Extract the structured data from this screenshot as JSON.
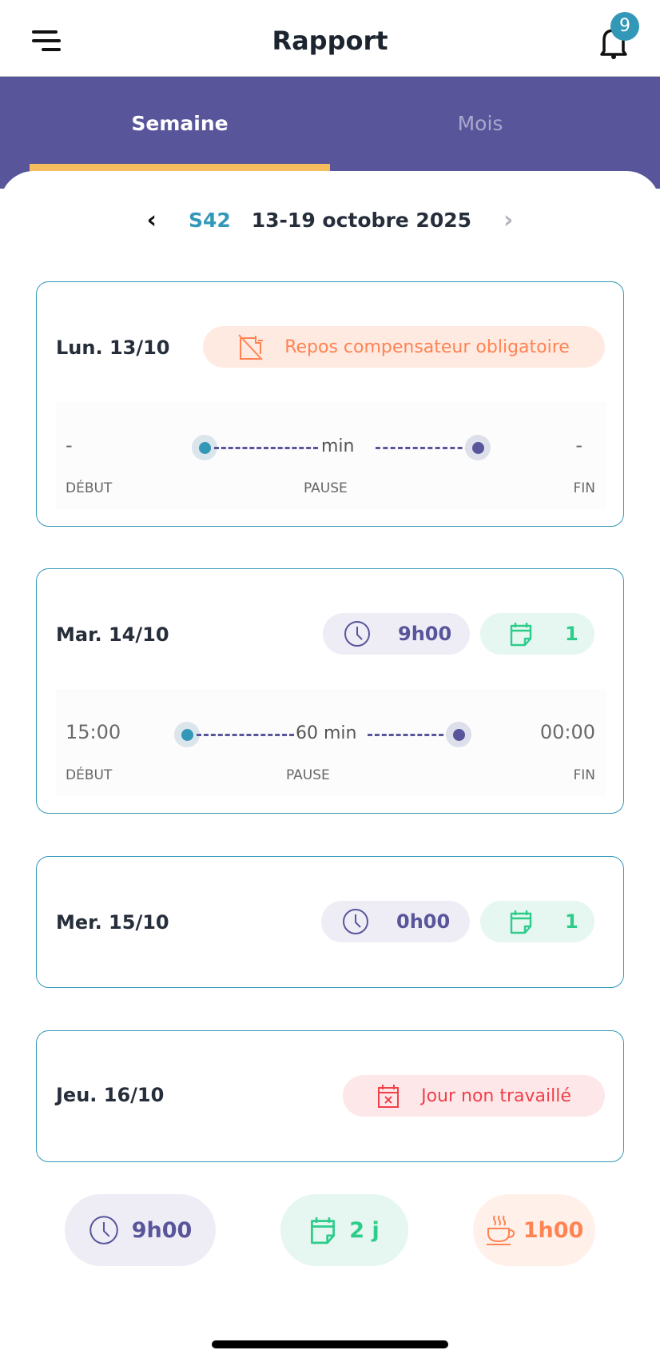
{
  "header": {
    "title": "Rapport",
    "notification_count": "9"
  },
  "tabs": [
    {
      "label": "Semaine",
      "active": true
    },
    {
      "label": "Mois",
      "active": false
    }
  ],
  "week": {
    "number": "S42",
    "range": "13-19 octobre 2025"
  },
  "labels": {
    "start": "DÉBUT",
    "pause": "PAUSE",
    "end": "FIN"
  },
  "days": [
    {
      "label": "Lun. 13/10",
      "badge": "Repos compensateur obligatoire",
      "start": "-",
      "pause": "min",
      "end": "-"
    },
    {
      "label": "Mar. 14/10",
      "hours": "9h00",
      "events": "1",
      "start": "15:00",
      "pause": "60 min",
      "end": "00:00"
    },
    {
      "label": "Mer. 15/10",
      "hours": "0h00",
      "events": "1"
    },
    {
      "label": "Jeu. 16/10",
      "badge": "Jour non travaillé"
    }
  ],
  "summary": {
    "hours": "9h00",
    "days": "2 j",
    "break": "1h00"
  },
  "colors": {
    "primary": "#58559b",
    "accent": "#f6bd5f",
    "teal": "#3398b8",
    "green": "#2ecc8a",
    "orange": "#ff8352",
    "red": "#f0414b"
  }
}
